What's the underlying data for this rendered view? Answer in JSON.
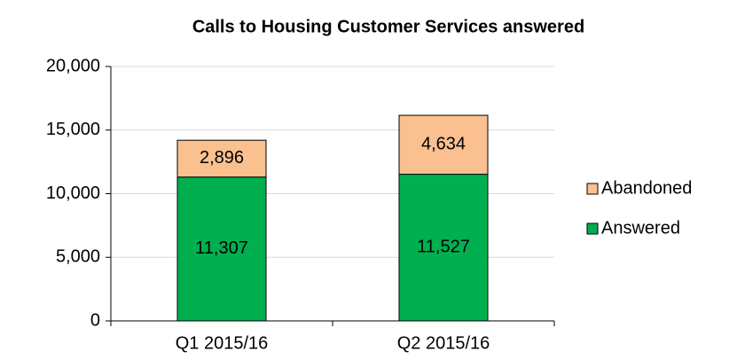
{
  "chart_data": {
    "type": "stacked_bar",
    "title": "Calls to Housing Customer Services answered",
    "categories": [
      "Q1 2015/16",
      "Q2 2015/16"
    ],
    "series": [
      {
        "name": "Answered",
        "color": "#00b050",
        "values": [
          11307,
          11527
        ],
        "value_labels": [
          "11,307",
          "11,527"
        ]
      },
      {
        "name": "Abandoned",
        "color": "#fac090",
        "values": [
          2896,
          4634
        ],
        "value_labels": [
          "2,896",
          "4,634"
        ]
      }
    ],
    "ylim": [
      0,
      20000
    ],
    "yticks": [
      0,
      {
        "value": 5000,
        "label": "5,000"
      },
      {
        "value": 10000,
        "label": "10,000"
      },
      {
        "value": 15000,
        "label": "15,000"
      },
      {
        "value": 20000,
        "label": "20,000"
      }
    ],
    "grid": true,
    "legend": "right"
  }
}
